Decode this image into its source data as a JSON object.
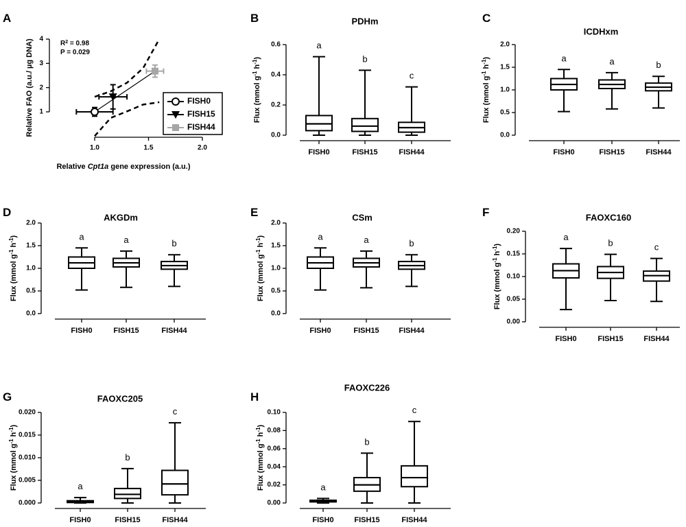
{
  "chart_data": [
    {
      "id": "A",
      "panel_label": "A",
      "type": "scatter",
      "title": "",
      "xlabel_pre": "Relative ",
      "xlabel_gene": "Cpt1a",
      "xlabel_post": " gene expression (a.u.)",
      "ylabel": "Relative FAO (a.u./  µg DNA)",
      "xlim": [
        0.5,
        2.0
      ],
      "ylim": [
        0,
        4
      ],
      "xticks": [
        "1.0",
        "1.5",
        "2.0"
      ],
      "yticks": [
        "1",
        "2",
        "3",
        "4"
      ],
      "stats": {
        "r2_label": "R",
        "r2_sup": "2",
        "r2_value": " = 0.98",
        "p_text": "P = 0.029"
      },
      "points": [
        {
          "name": "FISH0",
          "x": 1.0,
          "y": 1.0,
          "xerr": 0.17,
          "yerr": 0.18,
          "marker": "circle-open",
          "color": "#000000"
        },
        {
          "name": "FISH15",
          "x": 1.17,
          "y": 1.62,
          "xerr": 0.13,
          "yerr": 0.5,
          "marker": "triangle-down",
          "color": "#000000"
        },
        {
          "name": "FISH44",
          "x": 1.56,
          "y": 2.68,
          "xerr": 0.08,
          "yerr": 0.25,
          "marker": "square",
          "color": "#a6a6a6"
        }
      ],
      "fit_line": {
        "x": [
          1.0,
          1.56
        ],
        "y": [
          1.0,
          2.68
        ]
      },
      "ci_upper": {
        "x": [
          1.0,
          1.15,
          1.3,
          1.45,
          1.6
        ],
        "y": [
          1.62,
          1.85,
          2.2,
          2.8,
          4.0
        ]
      },
      "ci_lower": {
        "x": [
          1.0,
          1.15,
          1.3,
          1.45,
          1.6
        ],
        "y": [
          0.0,
          0.75,
          1.02,
          1.3,
          1.4
        ]
      },
      "legend": [
        "FISH0",
        "FISH15",
        "FISH44"
      ]
    },
    {
      "id": "B",
      "panel_label": "B",
      "type": "box",
      "title": "PDHm",
      "ylabel_main": "Flux (mmol g",
      "ylabel_sup1": "-1",
      "ylabel_mid": " h",
      "ylabel_sup2": "-1",
      "ylabel_end": ")",
      "ylim": [
        0,
        0.6
      ],
      "yticks": [
        "0.0",
        "0.2",
        "0.4",
        "0.6"
      ],
      "categories": [
        "FISH0",
        "FISH15",
        "FISH44"
      ],
      "boxes": [
        {
          "min": 0.0,
          "q1": 0.03,
          "median": 0.075,
          "q3": 0.13,
          "max": 0.52,
          "letter": "a"
        },
        {
          "min": 0.0,
          "q1": 0.025,
          "median": 0.06,
          "q3": 0.11,
          "max": 0.43,
          "letter": "b"
        },
        {
          "min": 0.0,
          "q1": 0.02,
          "median": 0.05,
          "q3": 0.085,
          "max": 0.32,
          "letter": "c"
        }
      ]
    },
    {
      "id": "C",
      "panel_label": "C",
      "type": "box",
      "title": "ICDHxm",
      "ylabel_main": "Flux (mmol g",
      "ylabel_sup1": "-1",
      "ylabel_mid": " h",
      "ylabel_sup2": "-1",
      "ylabel_end": ")",
      "ylim": [
        0,
        2.0
      ],
      "yticks": [
        "0.0",
        "0.5",
        "1.0",
        "1.5",
        "2.0"
      ],
      "categories": [
        "FISH0",
        "FISH15",
        "FISH44"
      ],
      "boxes": [
        {
          "min": 0.52,
          "q1": 1.0,
          "median": 1.12,
          "q3": 1.25,
          "max": 1.45,
          "letter": "a"
        },
        {
          "min": 0.58,
          "q1": 1.03,
          "median": 1.12,
          "q3": 1.22,
          "max": 1.38,
          "letter": "a"
        },
        {
          "min": 0.6,
          "q1": 0.98,
          "median": 1.06,
          "q3": 1.15,
          "max": 1.3,
          "letter": "b"
        }
      ]
    },
    {
      "id": "D",
      "panel_label": "D",
      "type": "box",
      "title": "AKGDm",
      "ylabel_main": "Flux (mmol g",
      "ylabel_sup1": "-1",
      "ylabel_mid": " h",
      "ylabel_sup2": "-1",
      "ylabel_end": ")",
      "ylim": [
        0,
        2.0
      ],
      "yticks": [
        "0.0",
        "0.5",
        "1.0",
        "1.5",
        "2.0"
      ],
      "categories": [
        "FISH0",
        "FISH15",
        "FISH44"
      ],
      "boxes": [
        {
          "min": 0.52,
          "q1": 1.0,
          "median": 1.12,
          "q3": 1.25,
          "max": 1.45,
          "letter": "a"
        },
        {
          "min": 0.58,
          "q1": 1.03,
          "median": 1.12,
          "q3": 1.22,
          "max": 1.38,
          "letter": "a"
        },
        {
          "min": 0.6,
          "q1": 0.98,
          "median": 1.06,
          "q3": 1.15,
          "max": 1.3,
          "letter": "b"
        }
      ]
    },
    {
      "id": "E",
      "panel_label": "E",
      "type": "box",
      "title": "CSm",
      "ylabel_main": "Flux (mmol g",
      "ylabel_sup1": "-1",
      "ylabel_mid": " h",
      "ylabel_sup2": "-1",
      "ylabel_end": ")",
      "ylim": [
        0,
        2.0
      ],
      "yticks": [
        "0.0",
        "0.5",
        "1.0",
        "1.5",
        "2.0"
      ],
      "categories": [
        "FISH0",
        "FISH15",
        "FISH44"
      ],
      "boxes": [
        {
          "min": 0.52,
          "q1": 1.0,
          "median": 1.12,
          "q3": 1.25,
          "max": 1.45,
          "letter": "a"
        },
        {
          "min": 0.57,
          "q1": 1.03,
          "median": 1.12,
          "q3": 1.22,
          "max": 1.38,
          "letter": "a"
        },
        {
          "min": 0.6,
          "q1": 0.98,
          "median": 1.06,
          "q3": 1.15,
          "max": 1.3,
          "letter": "b"
        }
      ]
    },
    {
      "id": "F",
      "panel_label": "F",
      "type": "box",
      "title": "FAOXC160",
      "ylabel_main": "Flux (mmol g",
      "ylabel_sup1": "-1",
      "ylabel_mid": " h",
      "ylabel_sup2": "-1",
      "ylabel_end": ")",
      "ylim": [
        0,
        0.2
      ],
      "yticks": [
        "0.00",
        "0.05",
        "0.10",
        "0.15",
        "0.20"
      ],
      "categories": [
        "FISH0",
        "FISH15",
        "FISH44"
      ],
      "boxes": [
        {
          "min": 0.027,
          "q1": 0.097,
          "median": 0.113,
          "q3": 0.128,
          "max": 0.162,
          "letter": "a"
        },
        {
          "min": 0.047,
          "q1": 0.096,
          "median": 0.109,
          "q3": 0.122,
          "max": 0.149,
          "letter": "b"
        },
        {
          "min": 0.045,
          "q1": 0.09,
          "median": 0.102,
          "q3": 0.112,
          "max": 0.14,
          "letter": "c"
        }
      ]
    },
    {
      "id": "G",
      "panel_label": "G",
      "type": "box",
      "title": "FAOXC205",
      "ylabel_main": "Flux (mmol g",
      "ylabel_sup1": "-1",
      "ylabel_mid": " h",
      "ylabel_sup2": "-1",
      "ylabel_end": ")",
      "ylim": [
        0,
        0.02
      ],
      "yticks": [
        "0.000",
        "0.005",
        "0.010",
        "0.015",
        "0.020"
      ],
      "categories": [
        "FISH0",
        "FISH15",
        "FISH44"
      ],
      "boxes": [
        {
          "min": 0.0,
          "q1": 0.0001,
          "median": 0.0003,
          "q3": 0.0005,
          "max": 0.0012,
          "letter": "a"
        },
        {
          "min": 0.0,
          "q1": 0.001,
          "median": 0.0019,
          "q3": 0.0032,
          "max": 0.0076,
          "letter": "b"
        },
        {
          "min": 0.0,
          "q1": 0.0018,
          "median": 0.0042,
          "q3": 0.0072,
          "max": 0.0177,
          "letter": "c"
        }
      ]
    },
    {
      "id": "H",
      "panel_label": "H",
      "type": "box",
      "title": "FAOXC226",
      "ylabel_main": "Flux (mmol g",
      "ylabel_sup1": "-1",
      "ylabel_mid": " h",
      "ylabel_sup2": "-1",
      "ylabel_end": ")",
      "ylim": [
        0,
        0.1
      ],
      "yticks": [
        "0.00",
        "0.02",
        "0.04",
        "0.06",
        "0.08",
        "0.10"
      ],
      "categories": [
        "FISH0",
        "FISH15",
        "FISH44"
      ],
      "boxes": [
        {
          "min": 0.0,
          "q1": 0.0012,
          "median": 0.002,
          "q3": 0.003,
          "max": 0.005,
          "letter": "a"
        },
        {
          "min": 0.0,
          "q1": 0.013,
          "median": 0.02,
          "q3": 0.028,
          "max": 0.055,
          "letter": "b"
        },
        {
          "min": 0.0,
          "q1": 0.018,
          "median": 0.028,
          "q3": 0.041,
          "max": 0.09,
          "letter": "c"
        }
      ]
    }
  ]
}
